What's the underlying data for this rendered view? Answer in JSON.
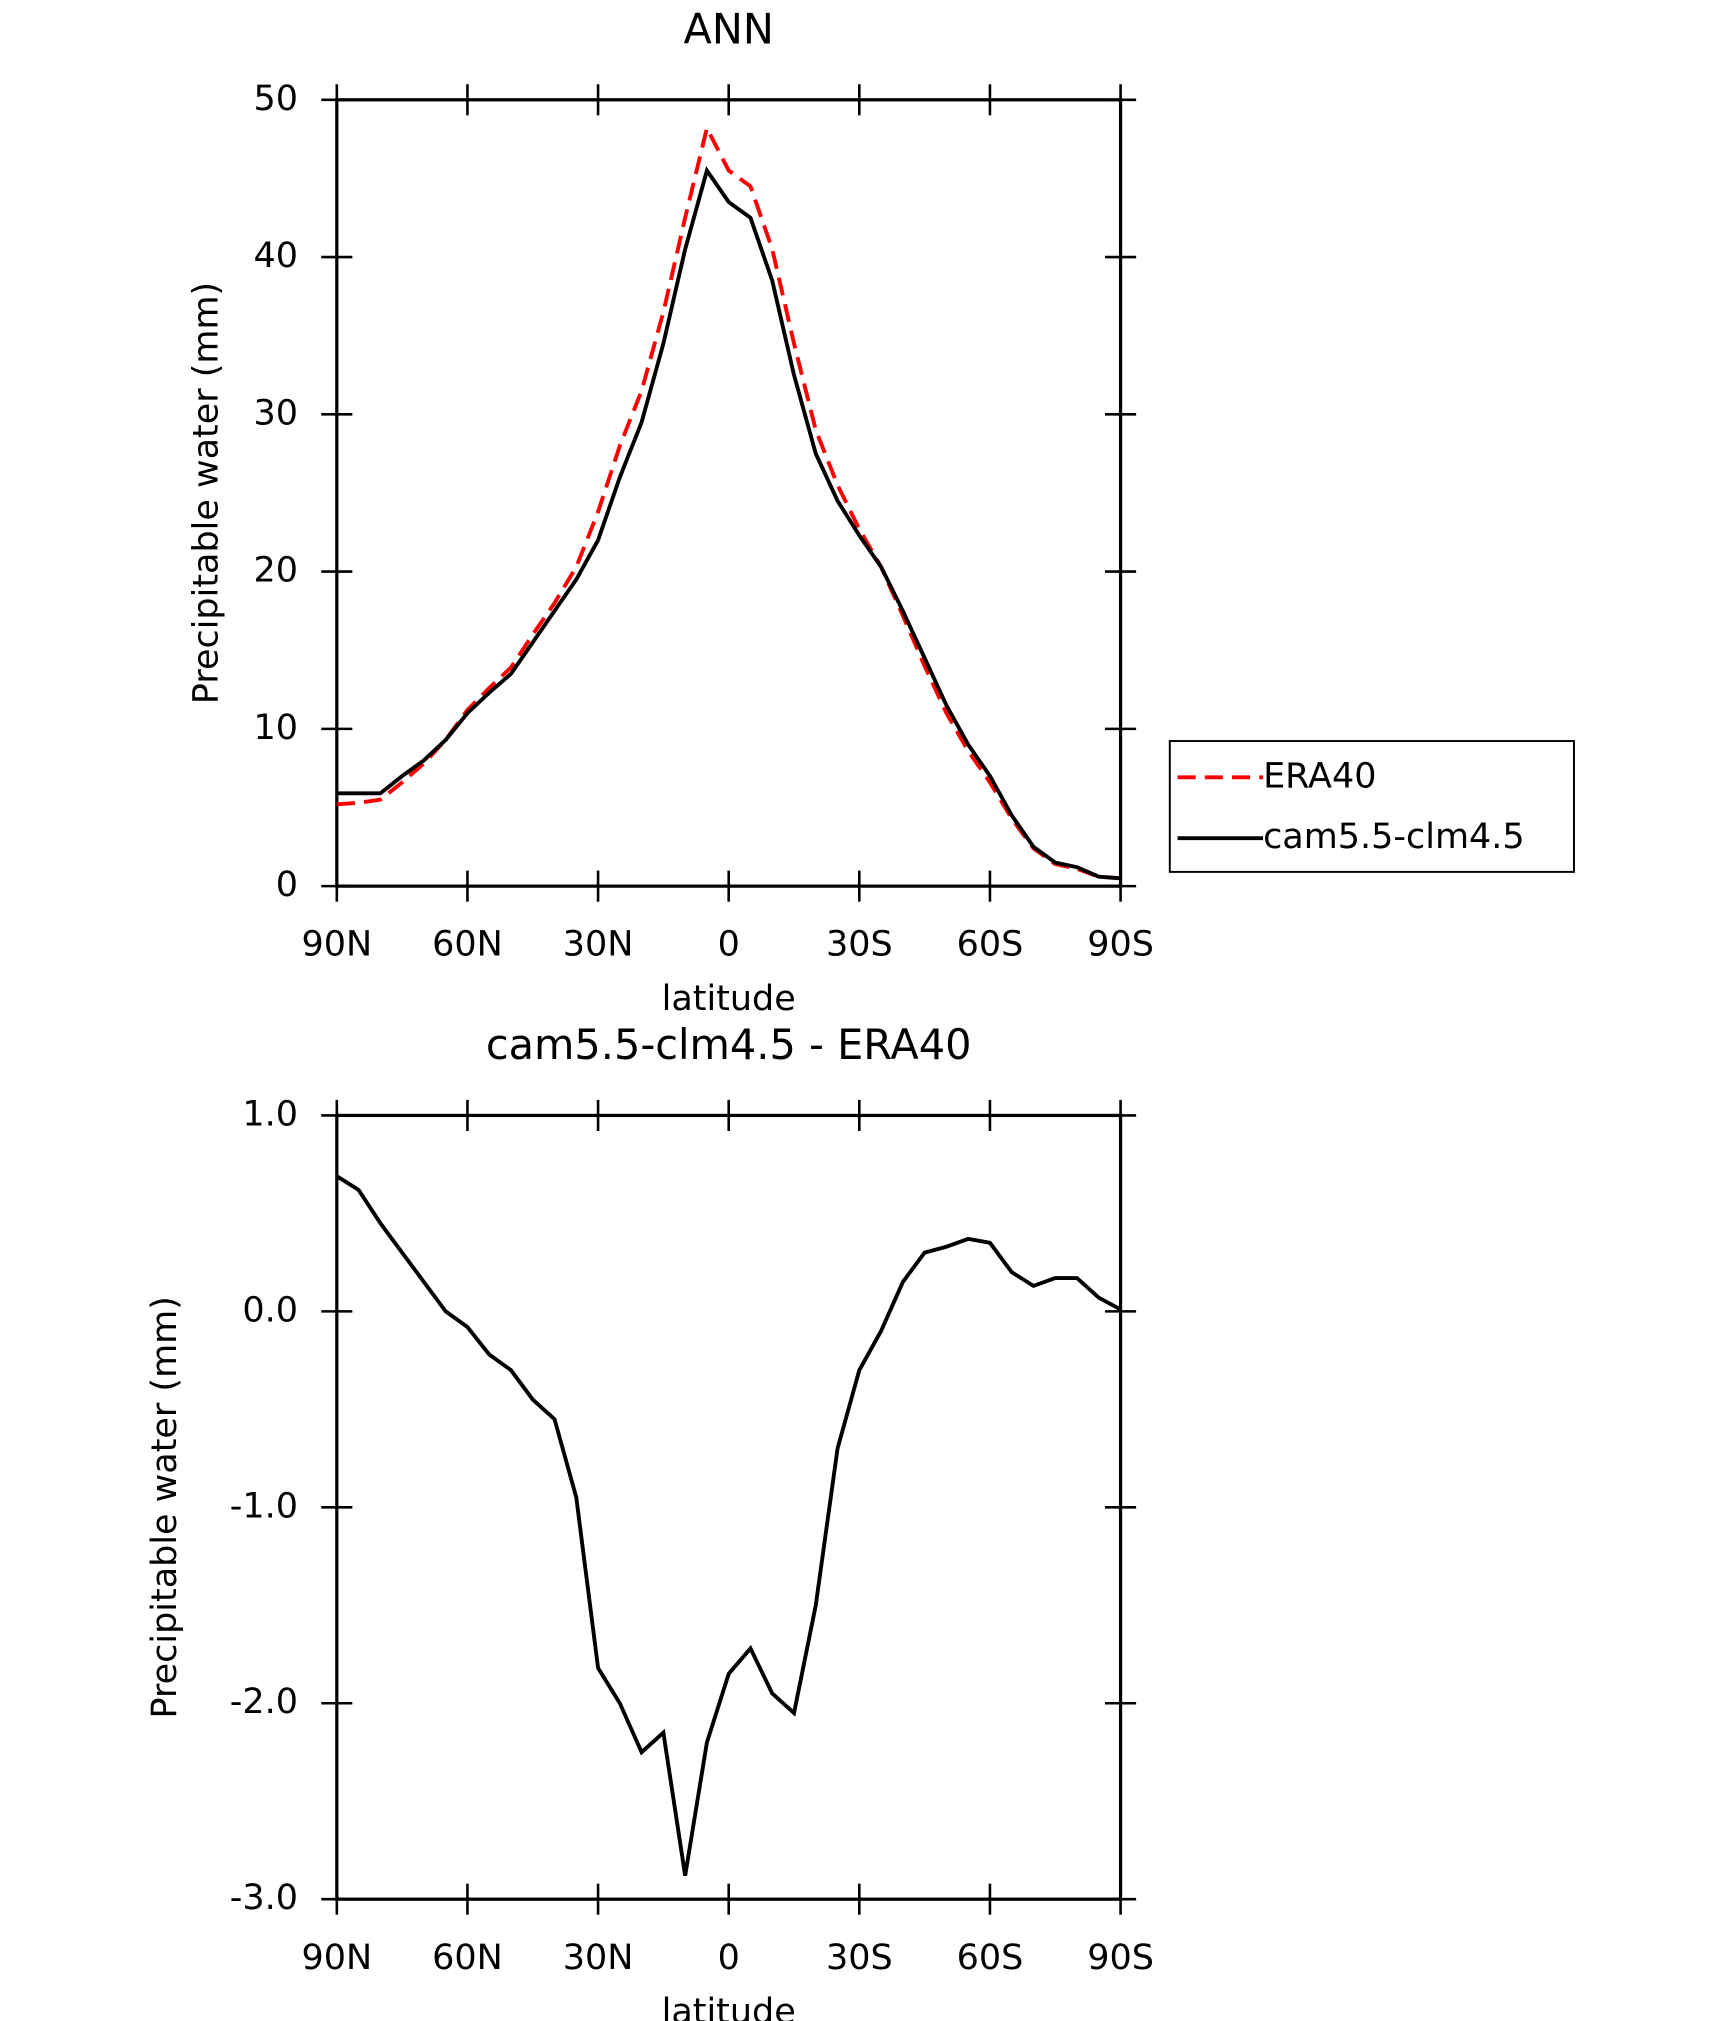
{
  "chart_data": [
    {
      "type": "line",
      "title": "ANN",
      "x_label": "latitude",
      "y_label": "Precipitable water (mm)",
      "x": [
        90,
        85,
        80,
        75,
        70,
        65,
        60,
        55,
        50,
        45,
        40,
        35,
        30,
        25,
        20,
        15,
        10,
        5,
        0,
        -5,
        -10,
        -15,
        -20,
        -25,
        -30,
        -35,
        -40,
        -45,
        -50,
        -55,
        -60,
        -65,
        -70,
        -75,
        -80,
        -85,
        -90
      ],
      "xlim": [
        90,
        -90
      ],
      "xticks": [
        {
          "value": 90,
          "label": "90N"
        },
        {
          "value": 60,
          "label": "60N"
        },
        {
          "value": 30,
          "label": "30N"
        },
        0,
        {
          "value": -30,
          "label": "30S"
        },
        {
          "value": -60,
          "label": "60S"
        },
        {
          "value": -90,
          "label": "90S"
        }
      ],
      "ylim": [
        0,
        50
      ],
      "yticks": [
        0,
        10,
        20,
        30,
        40,
        50
      ],
      "legend": "right",
      "series": [
        {
          "name": "ERA40",
          "color": "#ff0000",
          "line_style": "dashed",
          "values": [
            5.2,
            5.3,
            5.5,
            6.6,
            7.8,
            9.3,
            11.2,
            12.6,
            13.9,
            16,
            18,
            20.3,
            23.8,
            28,
            31.5,
            36.5,
            42.5,
            48.2,
            45.5,
            44.5,
            40.5,
            34.5,
            29,
            25.5,
            22.7,
            20.3,
            17.2,
            14,
            11,
            8.6,
            6.6,
            4.3,
            2.4,
            1.4,
            1.1,
            0.6,
            0.5
          ]
        },
        {
          "name": "cam5.5-clm4.5",
          "color": "#000000",
          "line_style": "solid",
          "values": [
            5.9,
            5.9,
            5.9,
            7.0,
            8.0,
            9.3,
            11.0,
            12.3,
            13.5,
            15.5,
            17.5,
            19.5,
            22,
            26,
            29.5,
            34.5,
            40.5,
            45.5,
            43.5,
            42.5,
            38.5,
            32.5,
            27.5,
            24.5,
            22.3,
            20.3,
            17.5,
            14.5,
            11.5,
            9,
            7,
            4.5,
            2.5,
            1.5,
            1.2,
            0.6,
            0.5
          ]
        }
      ]
    },
    {
      "type": "line",
      "title": "cam5.5-clm4.5 - ERA40",
      "x_label": "latitude",
      "y_label": "Precipitable water (mm)",
      "x": [
        90,
        85,
        80,
        75,
        70,
        65,
        60,
        55,
        50,
        45,
        40,
        35,
        30,
        25,
        20,
        15,
        10,
        5,
        0,
        -5,
        -10,
        -15,
        -20,
        -25,
        -30,
        -35,
        -40,
        -45,
        -50,
        -55,
        -60,
        -65,
        -70,
        -75,
        -80,
        -85,
        -90
      ],
      "xlim": [
        90,
        -90
      ],
      "xticks": [
        {
          "value": 90,
          "label": "90N"
        },
        {
          "value": 60,
          "label": "60N"
        },
        {
          "value": 30,
          "label": "30N"
        },
        0,
        {
          "value": -30,
          "label": "30S"
        },
        {
          "value": -60,
          "label": "60S"
        },
        {
          "value": -90,
          "label": "90S"
        }
      ],
      "ylim": [
        -3,
        1
      ],
      "yticks": [
        {
          "value": 1,
          "label": "1.0"
        },
        {
          "value": 0,
          "label": "0.0"
        },
        {
          "value": -1,
          "label": "-1.0"
        },
        {
          "value": -2,
          "label": "-2.0"
        },
        {
          "value": -3,
          "label": "-3.0"
        }
      ],
      "color": "#000000",
      "values": [
        0.69,
        0.62,
        0.45,
        0.3,
        0.15,
        0.0,
        -0.08,
        -0.22,
        -0.3,
        -0.45,
        -0.55,
        -0.95,
        -1.82,
        -2.0,
        -2.25,
        -2.15,
        -2.88,
        -2.2,
        -1.85,
        -1.72,
        -1.95,
        -2.05,
        -1.5,
        -0.7,
        -0.3,
        -0.1,
        0.15,
        0.3,
        0.33,
        0.37,
        0.35,
        0.2,
        0.13,
        0.17,
        0.17,
        0.07,
        0.01
      ]
    }
  ]
}
